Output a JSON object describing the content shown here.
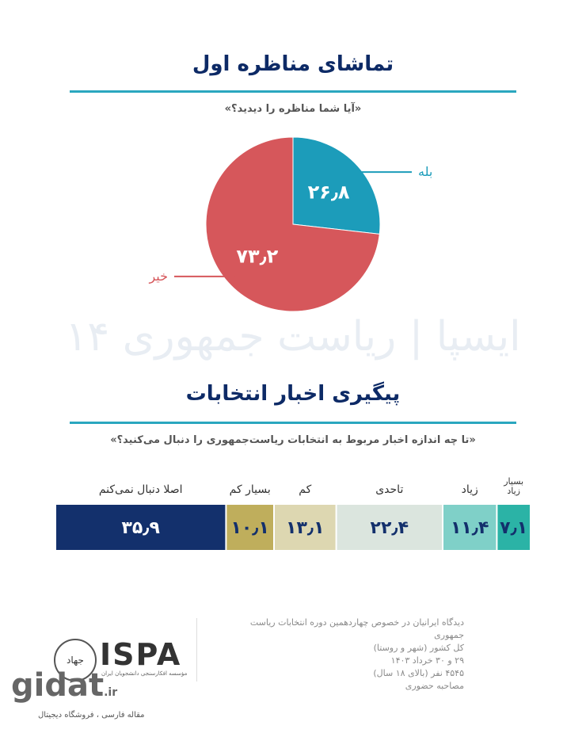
{
  "chart_data": [
    {
      "type": "pie",
      "title": "تماشای مناظره اول",
      "subtitle": "«آیا شما مناظره را دیدید؟»",
      "categories": [
        "بله",
        "خیر"
      ],
      "values": [
        26.8,
        73.2
      ],
      "value_labels": [
        "۲۶٫۸",
        "۷۳٫۲"
      ],
      "colors": [
        "#1c9cba",
        "#d6575b"
      ]
    },
    {
      "type": "stackedbar",
      "title": "پیگیری اخبار انتخابات",
      "subtitle": "«تا چه اندازه اخبار مربوط به انتخابات ریاست‌جمهوری را دنبال می‌کنید؟»",
      "series": [
        {
          "name": "بسیار زیاد",
          "color": "#2bb3a6",
          "values": [
            7.1
          ],
          "value_labels": [
            "۷٫۱"
          ]
        },
        {
          "name": "زیاد",
          "color": "#7fd0c8",
          "values": [
            11.4
          ],
          "value_labels": [
            "۱۱٫۴"
          ]
        },
        {
          "name": "تاحدی",
          "color": "#dbe5de",
          "values": [
            22.4
          ],
          "value_labels": [
            "۲۲٫۴"
          ]
        },
        {
          "name": "کم",
          "color": "#ddd7b1",
          "values": [
            13.1
          ],
          "value_labels": [
            "۱۳٫۱"
          ]
        },
        {
          "name": "بسیار کم",
          "color": "#bfae5c",
          "values": [
            10.1
          ],
          "value_labels": [
            "۱۰٫۱"
          ]
        },
        {
          "name": "اصلا دنبال نمی‌کنم",
          "color": "#13306c",
          "values": [
            35.9
          ],
          "value_labels": [
            "۳۵٫۹"
          ]
        }
      ]
    }
  ],
  "watermark": "ایسپا | ریاست جمهوری ۱۴",
  "footer": {
    "lines": [
      "دیدگاه ایرانیان در خصوص چهاردهمین دوره انتخابات ریاست جمهوری",
      "کل کشور (شهر و روستا)",
      "۲۹ و ۳۰ خرداد ۱۴۰۳",
      "۴۵۴۵ نفر (بالای ۱۸ سال)",
      "مصاحبه حضوری"
    ],
    "logo": "ISPA",
    "logo_badge": "جهاد",
    "logo_caption": "مؤسسه افکارسنجی دانشجویان ایران",
    "site": "gidat",
    "site_tld": ".ir",
    "site_caption": "مقاله فارسی ، فروشگاه دیجیتال"
  }
}
